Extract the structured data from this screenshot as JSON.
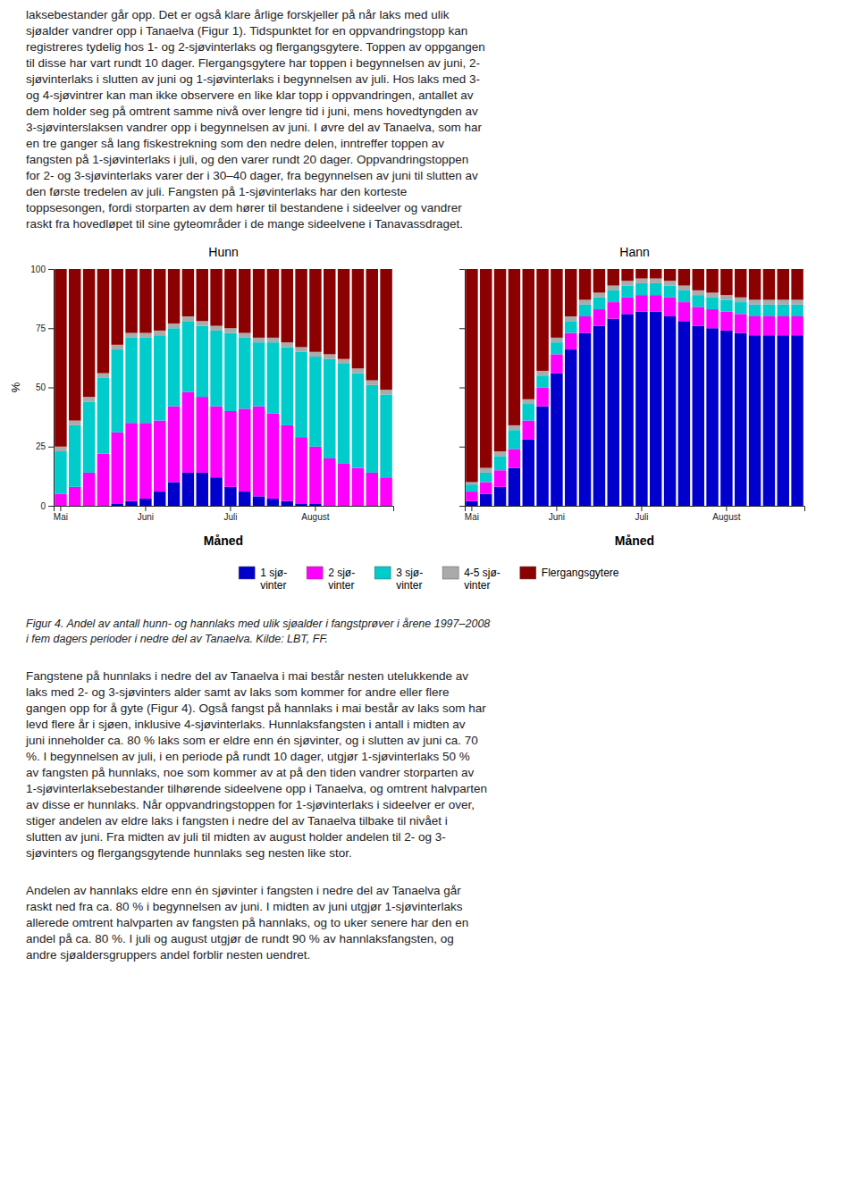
{
  "chart_data": [
    {
      "type": "bar",
      "stacked": true,
      "grid": false,
      "legend": "bottom",
      "title": "Hunn",
      "xlabel": "Måned",
      "ylabel": "%",
      "categories": [
        "Mai",
        null,
        null,
        null,
        null,
        null,
        "Juni",
        null,
        null,
        null,
        null,
        null,
        "Juli",
        null,
        null,
        null,
        null,
        null,
        "August",
        null,
        null,
        null,
        null,
        null
      ],
      "ylim": [
        0,
        100
      ],
      "yticks": [
        0,
        25,
        50,
        75,
        100
      ],
      "series": [
        {
          "name": "1 sjø-\nvinter",
          "color": "#0000CC",
          "values": [
            0,
            0,
            0,
            0,
            1,
            2,
            3,
            6,
            10,
            14,
            14,
            12,
            8,
            6,
            4,
            3,
            2,
            1,
            1,
            0,
            0,
            0,
            0,
            0
          ]
        },
        {
          "name": "2 sjø-\nvinter",
          "color": "#FF00FF",
          "values": [
            5,
            8,
            14,
            22,
            30,
            33,
            32,
            30,
            32,
            34,
            32,
            30,
            32,
            35,
            38,
            36,
            32,
            28,
            24,
            20,
            18,
            16,
            14,
            12
          ]
        },
        {
          "name": "3 sjø-\nvinter",
          "color": "#00CCCC",
          "values": [
            18,
            26,
            30,
            32,
            35,
            36,
            36,
            36,
            33,
            30,
            30,
            32,
            33,
            30,
            27,
            30,
            33,
            36,
            38,
            42,
            42,
            40,
            37,
            35
          ]
        },
        {
          "name": "4-5 sjø-\nvinter",
          "color": "#AAAAAA",
          "values": [
            2,
            2,
            2,
            2,
            2,
            2,
            2,
            2,
            2,
            2,
            2,
            2,
            2,
            2,
            2,
            2,
            2,
            2,
            2,
            2,
            2,
            2,
            2,
            2
          ]
        },
        {
          "name": "Flergangsgytere",
          "color": "#8B0000",
          "values": [
            75,
            64,
            54,
            44,
            32,
            27,
            27,
            26,
            23,
            20,
            22,
            24,
            25,
            27,
            29,
            29,
            31,
            33,
            35,
            36,
            38,
            42,
            47,
            51
          ]
        }
      ]
    },
    {
      "type": "bar",
      "stacked": true,
      "grid": false,
      "tick_labels": "x",
      "title": "Hann",
      "xlabel": "Måned",
      "categories": [
        "Mai",
        null,
        null,
        null,
        null,
        null,
        "Juni",
        null,
        null,
        null,
        null,
        null,
        "Juli",
        null,
        null,
        null,
        null,
        null,
        "August",
        null,
        null,
        null,
        null,
        null
      ],
      "ylim": [
        0,
        100
      ],
      "yticks": [
        0,
        25,
        50,
        75,
        100
      ],
      "series": [
        {
          "name": "1 sjø-\nvinter",
          "color": "#0000CC",
          "values": [
            2,
            5,
            8,
            16,
            28,
            42,
            56,
            66,
            73,
            76,
            79,
            81,
            82,
            82,
            80,
            78,
            76,
            75,
            74,
            73,
            72,
            72,
            72,
            72
          ]
        },
        {
          "name": "2 sjø-\nvinter",
          "color": "#FF00FF",
          "values": [
            4,
            5,
            7,
            8,
            8,
            8,
            8,
            7,
            7,
            7,
            7,
            7,
            7,
            7,
            8,
            8,
            8,
            8,
            8,
            8,
            8,
            8,
            8,
            8
          ]
        },
        {
          "name": "3 sjø-\nvinter",
          "color": "#00CCCC",
          "values": [
            3,
            4,
            6,
            8,
            7,
            5,
            5,
            5,
            5,
            5,
            5,
            5,
            5,
            5,
            5,
            5,
            5,
            5,
            5,
            5,
            5,
            5,
            5,
            5
          ]
        },
        {
          "name": "4-5 sjø-\nvinter",
          "color": "#AAAAAA",
          "values": [
            1,
            2,
            2,
            2,
            2,
            2,
            2,
            2,
            2,
            2,
            2,
            2,
            2,
            2,
            2,
            2,
            2,
            2,
            2,
            2,
            2,
            2,
            2,
            2
          ]
        },
        {
          "name": "Flergangsgytere",
          "color": "#8B0000",
          "values": [
            90,
            84,
            77,
            66,
            55,
            43,
            29,
            20,
            13,
            10,
            7,
            5,
            4,
            4,
            5,
            7,
            9,
            10,
            11,
            12,
            13,
            13,
            13,
            13
          ]
        }
      ]
    }
  ],
  "header_text": "laksebestander går opp. Det er også klare årlige forskjeller på når laks med ulik\nsjøalder vandrer opp i Tanaelva (Figur 1). Tidspunktet for en oppvandringstopp kan\nregistreres tydelig hos 1- og 2-sjøvinterlaks og flergangsgytere. Toppen av oppgangen\ntil disse har vart rundt 10 dager. Flergangsgytere har toppen i begynnelsen av juni, 2-\nsjøvinterlaks i slutten av juni og 1-sjøvinterlaks i begynnelsen av juli. Hos laks med 3-\nog 4-sjøvintrer kan man ikke observere en like klar topp i oppvandringen, antallet av\ndem holder seg på omtrent samme nivå over lengre tid i juni, mens hovedtyngden av\n3-sjøvinterslaksen vandrer opp i begynnelsen av juni. I øvre del av Tanaelva, som har\nen tre ganger så lang fiskestrekning som den nedre delen, inntreffer toppen av\nfangsten på 1-sjøvinterlaks i juli, og den varer rundt 20 dager. Oppvandringstoppen\nfor 2- og 3-sjøvinterlaks varer der i 30–40 dager, fra begynnelsen av juni til slutten av\nden første tredelen av juli. Fangsten på 1-sjøvinterlaks har den korteste\ntoppsesongen, fordi storparten av dem hører til bestandene i sideelver og vandrer\nraskt fra hovedløpet til sine gyteområder i de mange sideelvene i Tanavassdraget.",
  "caption": [
    "Figur 4. Andel av antall hunn- og hannlaks med ulik sjøalder i fangstprøver i årene 1997–2008",
    "i fem dagers perioder i nedre del av Tanaelva. Kilde: LBT, FF."
  ],
  "body_text": [
    "Fangstene på hunnlaks i nedre del av Tanaelva i mai består nesten utelukkende av\nlaks med 2- og 3-sjøvinters alder samt av laks som kommer for andre eller flere\ngangen opp for å gyte (Figur 4). Også fangst på hannlaks i mai består av laks som har\nlevd flere år i sjøen, inklusive 4-sjøvinterlaks. Hunnlaksfangsten i antall i midten av\njuni inneholder ca. 80 % laks som er eldre enn én sjøvinter, og i slutten av juni ca. 70\n%. I begynnelsen av juli, i en periode på rundt 10 dager, utgjør 1-sjøvinterlaks 50 %\nav fangsten på hunnlaks, noe som kommer av at på den tiden vandrer storparten av\n1-sjøvinterlaksebestander tilhørende sideelvene opp i Tanaelva, og omtrent halvparten\nav disse er hunnlaks. Når oppvandringstoppen for 1-sjøvinterlaks i sideelver er over,\nstiger andelen av eldre laks i fangsten i nedre del av Tanaelva tilbake til nivået i\nslutten av juni. Fra midten av juli til midten av august holder andelen til 2- og 3-\nsjøvinters og flergangsgytende hunnlaks seg nesten like stor.",
    "Andelen av hannlaks eldre enn én sjøvinter i fangsten i nedre del av Tanaelva går\nraskt ned fra ca. 80 % i begynnelsen av juni. I midten av juni utgjør 1-sjøvinterlaks\nallerede omtrent halvparten av fangsten på hannlaks, og to uker senere har den en\nandel på ca. 80 %. I juli og august utgjør de rundt 90 % av hannlaksfangsten, og\nandre sjøaldersgruppers andel forblir nesten uendret."
  ]
}
